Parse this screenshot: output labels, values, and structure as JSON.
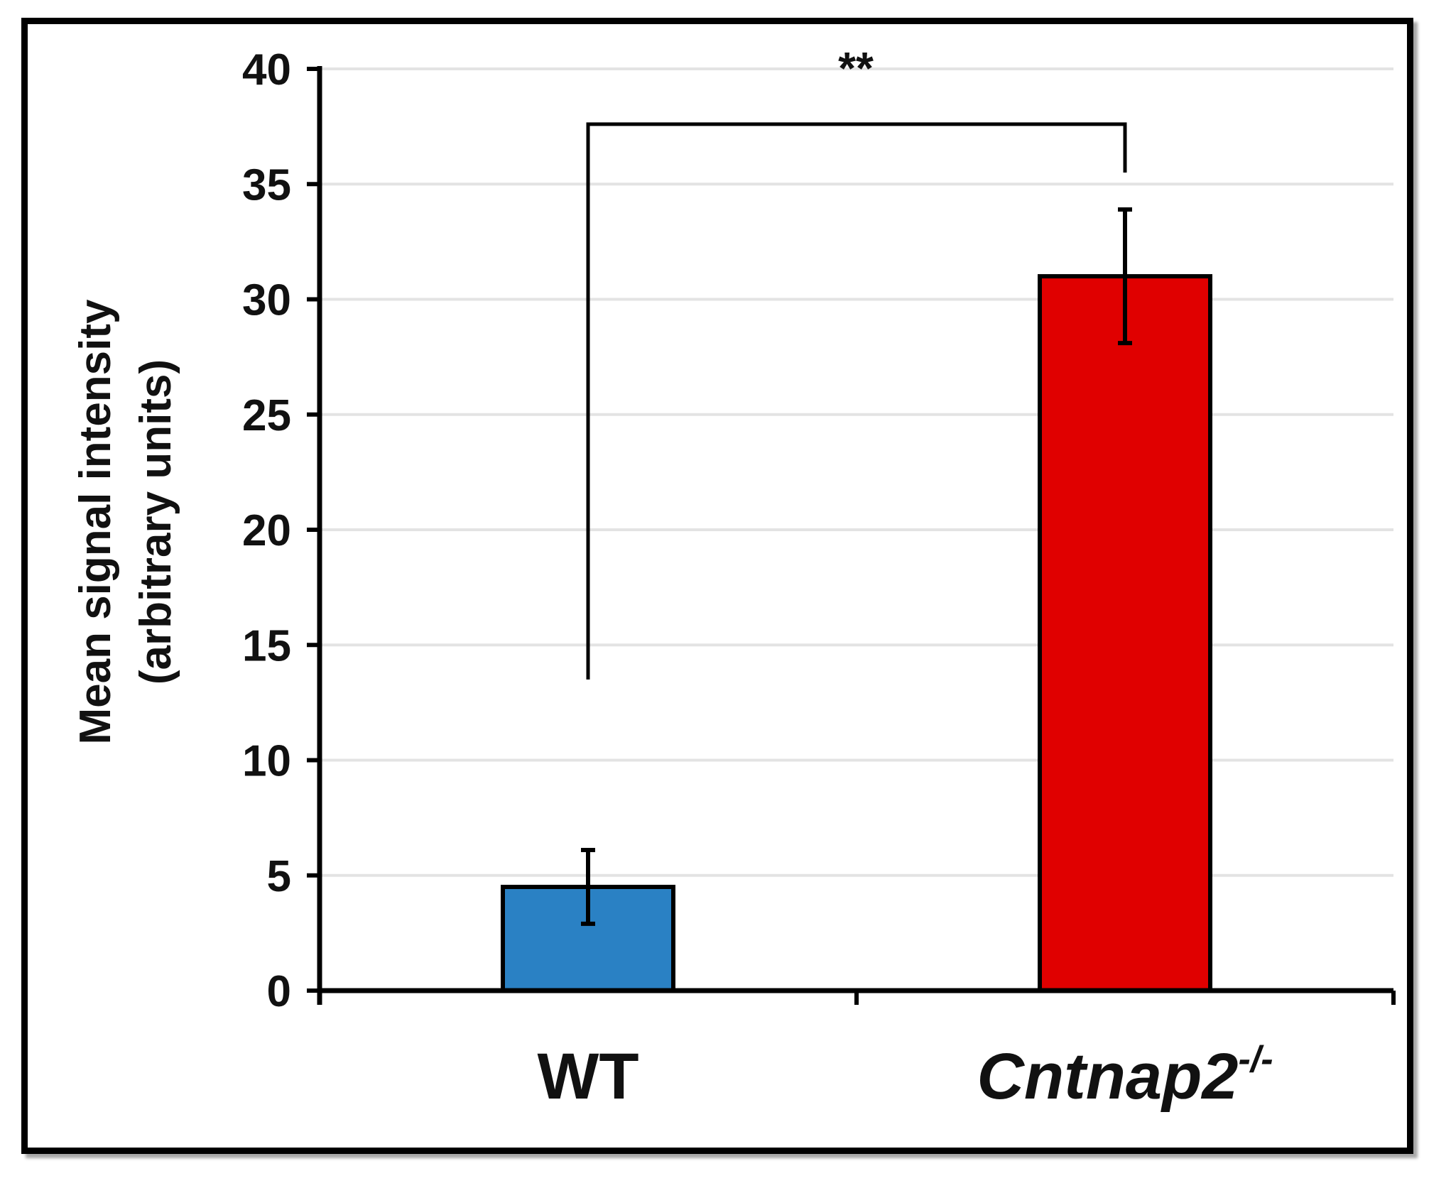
{
  "chart_data": {
    "type": "bar",
    "title": "",
    "xlabel": "",
    "ylabel": {
      "line1": "Mean signal intensity",
      "line2": "(arbitrary units)"
    },
    "ylim": [
      0,
      40
    ],
    "yticks": [
      0,
      5,
      10,
      15,
      20,
      25,
      30,
      35,
      40
    ],
    "grid": true,
    "categories": [
      {
        "name": "WT",
        "superscript": "",
        "italic": false
      },
      {
        "name": "Cntnap2",
        "superscript": "-/-",
        "italic": true
      }
    ],
    "values": [
      4.5,
      31
    ],
    "errors": [
      1.6,
      2.9
    ],
    "colors": [
      "#2a81c4",
      "#e00000"
    ],
    "significance": {
      "label": "**",
      "between": [
        0,
        1
      ],
      "bracket_y": 37.6,
      "left_drop_to": 13.5,
      "right_drop_to": 35.5
    }
  }
}
